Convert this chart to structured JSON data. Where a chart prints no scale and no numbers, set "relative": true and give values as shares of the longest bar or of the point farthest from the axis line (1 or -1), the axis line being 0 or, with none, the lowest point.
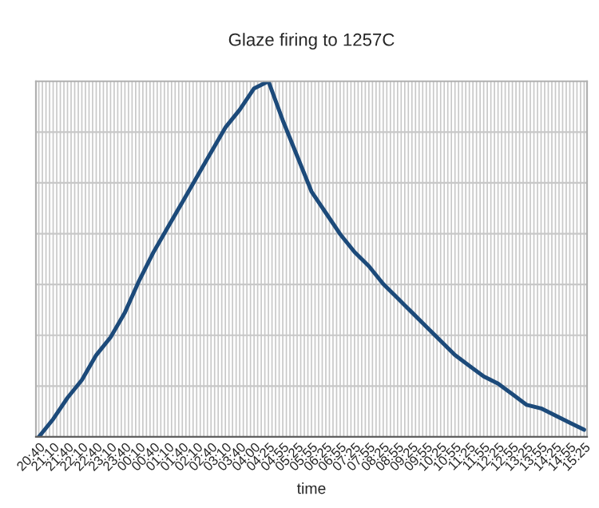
{
  "chart_data": {
    "type": "line",
    "title": "Glaze firing to 1257C",
    "xlabel": "time",
    "relative": true,
    "grid": true,
    "marker": "none",
    "line_style": "solid",
    "categories": [
      "20:40",
      "21:10",
      "21:40",
      "22:10",
      "22:40",
      "23:10",
      "23:40",
      "00:10",
      "00:40",
      "01:10",
      "01:40",
      "02:10",
      "02:40",
      "03:10",
      "03:40",
      "04:00",
      "04:25",
      "04:55",
      "05:25",
      "05:55",
      "06:25",
      "06:55",
      "07:25",
      "07:55",
      "08:25",
      "08:55",
      "09:25",
      "09:55",
      "10:25",
      "10:55",
      "11:25",
      "11:55",
      "12:25",
      "12:55",
      "13:25",
      "13:55",
      "14:25",
      "14:55",
      "15:25"
    ],
    "series": [
      {
        "color": "#1c4a7a",
        "values": [
          0,
          0.05,
          0.11,
          0.16,
          0.23,
          0.28,
          0.35,
          0.44,
          0.52,
          0.59,
          0.66,
          0.73,
          0.8,
          0.87,
          0.92,
          0.98,
          1,
          0.89,
          0.79,
          0.69,
          0.63,
          0.57,
          0.52,
          0.48,
          0.43,
          0.39,
          0.35,
          0.31,
          0.27,
          0.23,
          0.2,
          0.17,
          0.15,
          0.12,
          0.09,
          0.08,
          0.06,
          0.04,
          0.02
        ]
      }
    ]
  }
}
